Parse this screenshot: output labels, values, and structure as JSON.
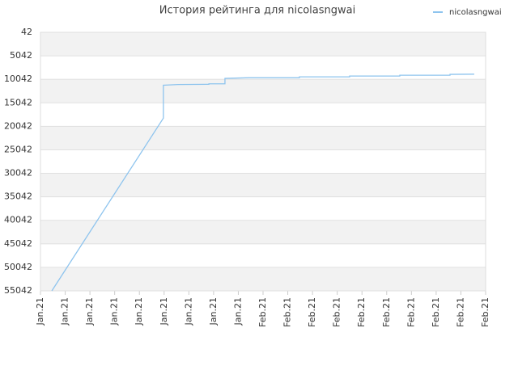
{
  "chart_data": {
    "type": "line",
    "title": "История рейтинга для nicolasngwai",
    "series": [
      {
        "name": "nicolasngwai",
        "color": "#8ec4ee",
        "x": [
          0.46,
          4.97,
          4.97,
          5.56,
          6.81,
          6.81,
          7.46,
          7.46,
          8.44,
          10.47,
          10.47,
          12.5,
          12.5,
          14.53,
          14.53,
          16.56,
          16.56,
          17.54
        ],
        "values": [
          55042,
          18300,
          11300,
          11150,
          11100,
          11000,
          11000,
          9850,
          9700,
          9700,
          9520,
          9520,
          9350,
          9350,
          9170,
          9170,
          8990,
          8950
        ]
      }
    ],
    "xlim": [
      0,
      18
    ],
    "xticks": [
      {
        "value": 0,
        "label": "Jan.21"
      },
      {
        "value": 1,
        "label": "Jan.21"
      },
      {
        "value": 2,
        "label": "Jan.21"
      },
      {
        "value": 3,
        "label": "Jan.21"
      },
      {
        "value": 4,
        "label": "Jan.21"
      },
      {
        "value": 5,
        "label": "Jan.21"
      },
      {
        "value": 6,
        "label": "Jan.21"
      },
      {
        "value": 7,
        "label": "Jan.21"
      },
      {
        "value": 8,
        "label": "Jan.21"
      },
      {
        "value": 9,
        "label": "Feb.21"
      },
      {
        "value": 10,
        "label": "Feb.21"
      },
      {
        "value": 11,
        "label": "Feb.21"
      },
      {
        "value": 12,
        "label": "Feb.21"
      },
      {
        "value": 13,
        "label": "Feb.21"
      },
      {
        "value": 14,
        "label": "Feb.21"
      },
      {
        "value": 15,
        "label": "Feb.21"
      },
      {
        "value": 16,
        "label": "Feb.21"
      },
      {
        "value": 17,
        "label": "Feb.21"
      },
      {
        "value": 18,
        "label": "Feb.21"
      }
    ],
    "ylim": [
      55042,
      42
    ],
    "yticks": [
      42,
      5042,
      10042,
      15042,
      20042,
      25042,
      30042,
      35042,
      40042,
      45042,
      50042,
      55042
    ],
    "grid": true,
    "legend": "top-right"
  }
}
